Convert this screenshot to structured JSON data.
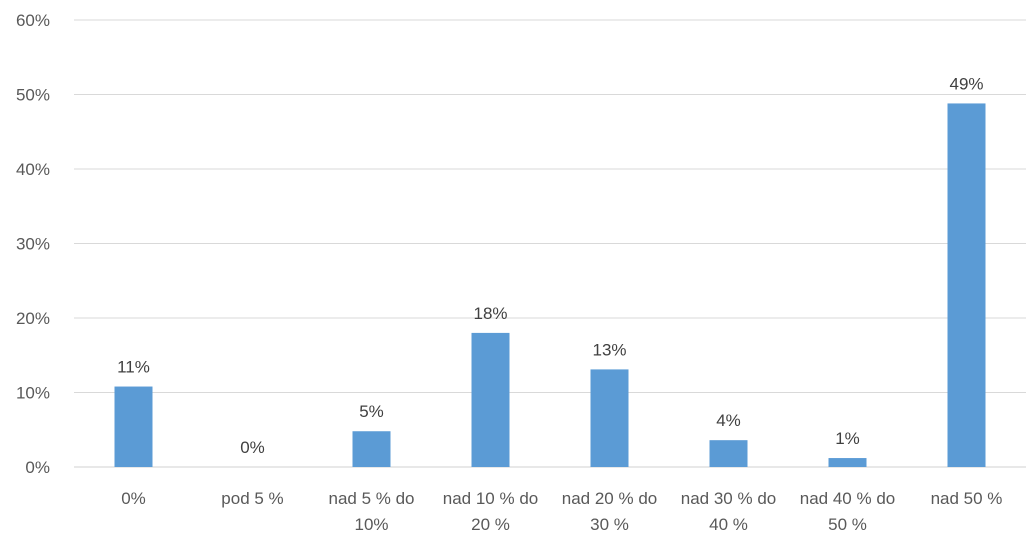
{
  "chart_data": {
    "type": "bar",
    "categories": [
      [
        "0%"
      ],
      [
        "pod 5 %"
      ],
      [
        "nad 5 % do",
        "10%"
      ],
      [
        "nad 10 % do",
        "20 %"
      ],
      [
        "nad 20 % do",
        "30 %"
      ],
      [
        "nad 30 % do",
        "40 %"
      ],
      [
        "nad 40 % do",
        "50 %"
      ],
      [
        "nad 50 %"
      ]
    ],
    "values": [
      10.8,
      0,
      4.8,
      18,
      13.1,
      3.6,
      1.2,
      48.8
    ],
    "data_labels": [
      "11%",
      "0%",
      "5%",
      "18%",
      "13%",
      "4%",
      "1%",
      "49%"
    ],
    "y_ticks": [
      "0%",
      "10%",
      "20%",
      "30%",
      "40%",
      "50%",
      "60%"
    ],
    "ylim": [
      0,
      60
    ],
    "grid": true,
    "bar_color": "#5b9bd5",
    "title": "",
    "xlabel": "",
    "ylabel": ""
  }
}
